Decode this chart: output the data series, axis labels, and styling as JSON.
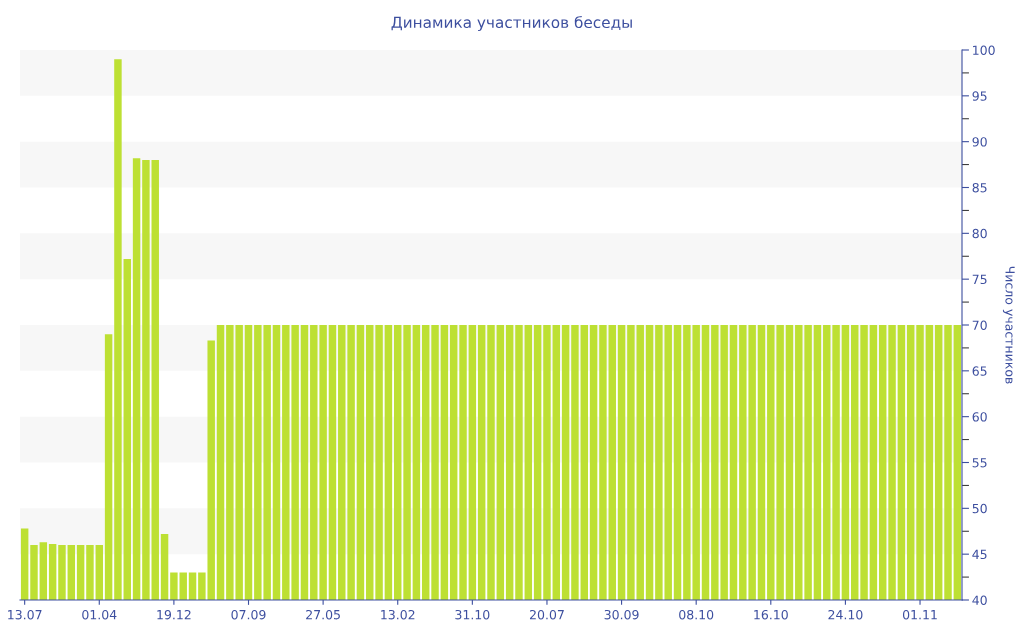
{
  "chart_data": {
    "type": "bar",
    "title": "Динамика участников беседы",
    "ylabel": "Число участников",
    "categories": [
      "13.07",
      null,
      null,
      null,
      null,
      null,
      null,
      null,
      "01.04",
      null,
      null,
      null,
      null,
      null,
      null,
      null,
      "19.12",
      null,
      null,
      null,
      null,
      null,
      null,
      null,
      "07.09",
      null,
      null,
      null,
      null,
      null,
      null,
      null,
      "27.05",
      null,
      null,
      null,
      null,
      null,
      null,
      null,
      "13.02",
      null,
      null,
      null,
      null,
      null,
      null,
      null,
      "31.10",
      null,
      null,
      null,
      null,
      null,
      null,
      null,
      "20.07",
      null,
      null,
      null,
      null,
      null,
      null,
      null,
      "30.09",
      null,
      null,
      null,
      null,
      null,
      null,
      null,
      "08.10",
      null,
      null,
      null,
      null,
      null,
      null,
      null,
      "16.10",
      null,
      null,
      null,
      null,
      null,
      null,
      null,
      "24.10",
      null,
      null,
      null,
      null,
      null,
      null,
      null,
      "01.11",
      null,
      null,
      null,
      null
    ],
    "values": [
      47.8,
      46,
      46.3,
      46.1,
      46,
      46,
      46,
      46,
      46,
      69,
      99,
      77.2,
      88.2,
      88,
      88,
      47.2,
      43,
      43,
      43,
      43,
      68.3,
      70,
      70,
      70,
      70,
      70,
      70,
      70,
      70,
      70,
      70,
      70,
      70,
      70,
      70,
      70,
      70,
      70,
      70,
      70,
      70,
      70,
      70,
      70,
      70,
      70,
      70,
      70,
      70,
      70,
      70,
      70,
      70,
      70,
      70,
      70,
      70,
      70,
      70,
      70,
      70,
      70,
      70,
      70,
      70,
      70,
      70,
      70,
      70,
      70,
      70,
      70,
      70,
      70,
      70,
      70,
      70,
      70,
      70,
      70,
      70,
      70,
      70,
      70,
      70,
      70,
      70,
      70,
      70,
      70,
      70,
      70,
      70,
      70,
      70,
      70,
      70,
      70,
      70,
      70,
      70
    ],
    "color": "#bde033",
    "ylim": [
      40,
      100
    ],
    "yticks": [
      40,
      45,
      50,
      55,
      60,
      65,
      70,
      75,
      80,
      85,
      90,
      95,
      100
    ],
    "grid": false,
    "legend": false,
    "bands": [
      {
        "axis": "y",
        "from": 45,
        "to": 50,
        "color": "#f7f7f7"
      },
      {
        "axis": "y",
        "from": 55,
        "to": 60,
        "color": "#f7f7f7"
      },
      {
        "axis": "y",
        "from": 65,
        "to": 70,
        "color": "#f7f7f7"
      },
      {
        "axis": "y",
        "from": 75,
        "to": 80,
        "color": "#f7f7f7"
      },
      {
        "axis": "y",
        "from": 85,
        "to": 90,
        "color": "#f7f7f7"
      },
      {
        "axis": "y",
        "from": 95,
        "to": 100,
        "color": "#f7f7f7"
      }
    ]
  }
}
